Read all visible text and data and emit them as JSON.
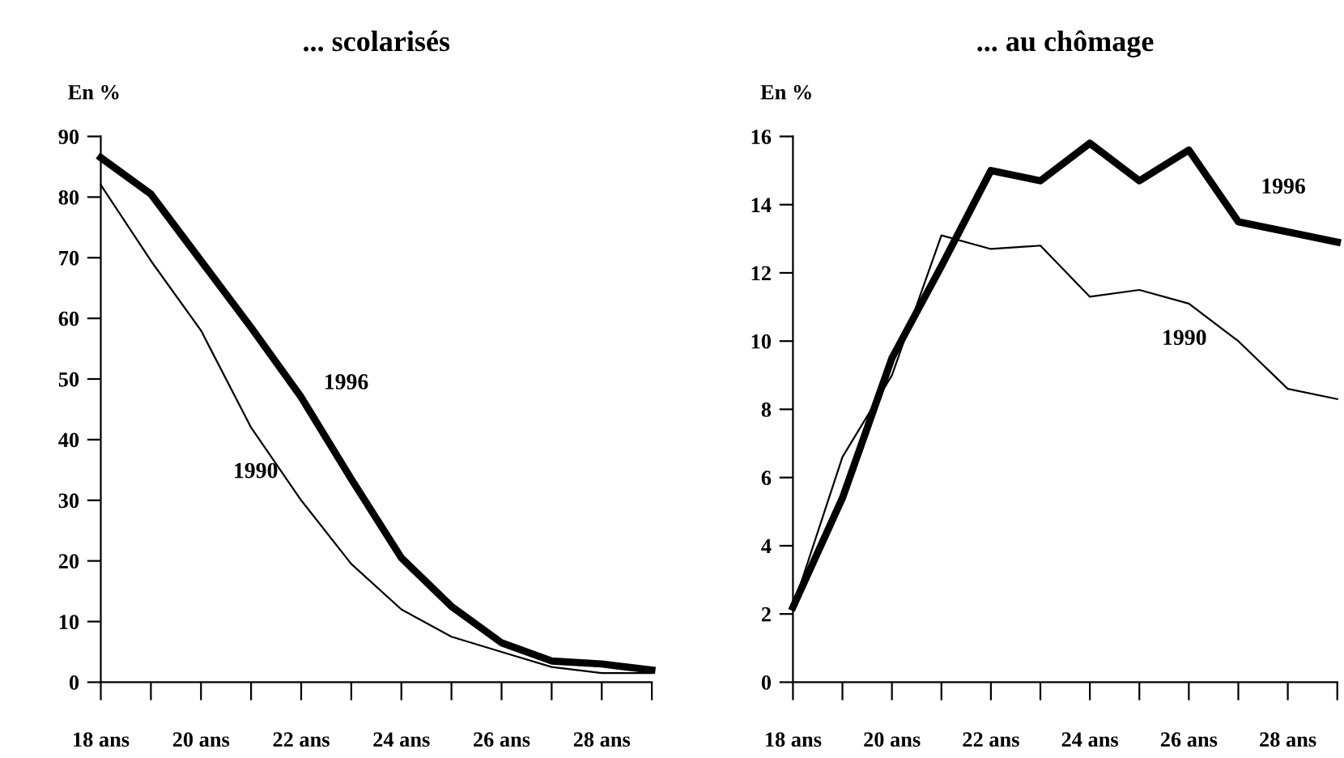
{
  "chart_data": [
    {
      "type": "line",
      "title": "... scolarisés",
      "ylabel": "En %",
      "categories": [
        "18 ans",
        null,
        "20 ans",
        null,
        "22 ans",
        null,
        "24 ans",
        null,
        "26 ans",
        null,
        "28 ans",
        null
      ],
      "ylim": [
        0,
        90
      ],
      "yticks": [
        0,
        10,
        20,
        30,
        40,
        50,
        60,
        70,
        80,
        90
      ],
      "grid": false,
      "legend": false,
      "marker": "none",
      "line_style": "solid",
      "series": [
        {
          "name": "1996",
          "color": "#000000",
          "values": [
            86.5,
            80.5,
            69.5,
            58.5,
            47,
            33.5,
            20.5,
            12.5,
            6.5,
            3.5,
            3,
            2
          ]
        },
        {
          "name": "1990",
          "color": "#000000",
          "values": [
            82,
            69.5,
            58,
            42,
            30,
            19.5,
            12,
            7.5,
            5,
            2.5,
            1.5,
            1.5
          ]
        }
      ]
    },
    {
      "type": "line",
      "title": "... au chômage",
      "ylabel": "En %",
      "categories": [
        "18 ans",
        null,
        "20 ans",
        null,
        "22 ans",
        null,
        "24 ans",
        null,
        "26 ans",
        null,
        "28 ans",
        null
      ],
      "ylim": [
        0,
        16
      ],
      "yticks": [
        0,
        2,
        4,
        6,
        8,
        10,
        12,
        14,
        16
      ],
      "grid": false,
      "legend": false,
      "marker": "none",
      "line_style": "solid",
      "series": [
        {
          "name": "1996",
          "color": "#000000",
          "values": [
            2.2,
            5.4,
            9.5,
            12.2,
            15.0,
            14.7,
            15.8,
            14.7,
            15.6,
            13.5,
            13.2,
            12.9
          ]
        },
        {
          "name": "1990",
          "color": "#000000",
          "values": [
            2.2,
            6.6,
            9.0,
            13.1,
            12.7,
            12.8,
            11.3,
            11.5,
            11.1,
            10.0,
            8.6,
            8.3
          ]
        }
      ]
    }
  ]
}
